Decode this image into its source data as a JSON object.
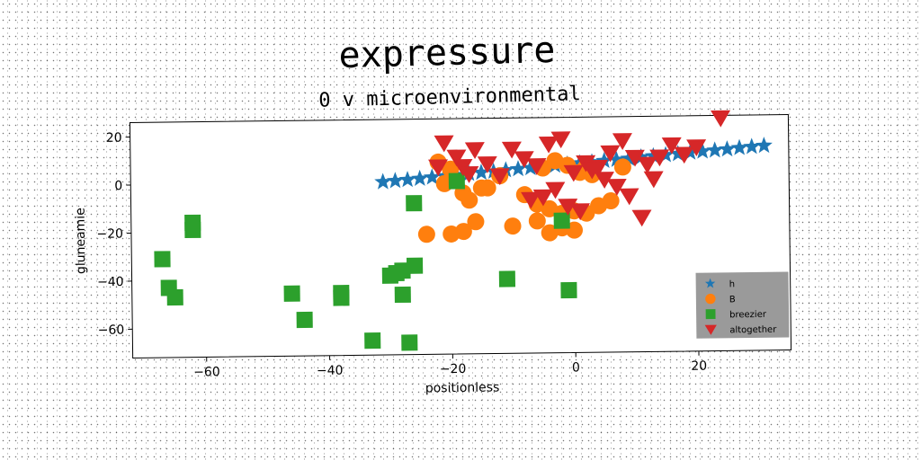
{
  "chart_data": {
    "type": "scatter",
    "title": "expressure",
    "subtitle": "0 v microenvironmental",
    "xlabel": "positionless",
    "ylabel": "gluneamie",
    "xlim": [
      -72,
      35
    ],
    "ylim": [
      -72,
      26
    ],
    "xticks": [
      -60,
      -40,
      -20,
      0,
      20
    ],
    "yticks": [
      20,
      0,
      -20,
      -40,
      -60
    ],
    "xtick_labels": [
      "−60",
      "−40",
      "−20",
      "0",
      "20"
    ],
    "ytick_labels": [
      "20",
      "0",
      "−20",
      "−40",
      "−60"
    ],
    "grid": false,
    "legend_position": "bottom-right",
    "series": [
      {
        "name": "h",
        "marker": "star",
        "color": "#1f77b4",
        "x": [
          -31,
          -29,
          -27,
          -25,
          -23,
          -21,
          -19,
          -17,
          -15,
          -13,
          -11,
          -9,
          -7,
          -5,
          -3,
          -1,
          1,
          3,
          5,
          7,
          9,
          11,
          13,
          15,
          17,
          19,
          21,
          23,
          25,
          27,
          29,
          31
        ],
        "y": [
          0,
          0.4,
          0.8,
          1.2,
          1.7,
          2.1,
          2.5,
          3,
          3.4,
          3.8,
          4.3,
          4.7,
          5.1,
          5.5,
          6,
          6.4,
          6.8,
          7.2,
          7.7,
          8.1,
          8.5,
          9,
          9.4,
          9.8,
          10.2,
          10.7,
          11.1,
          11.5,
          11.9,
          12.4,
          12.8,
          13.2
        ]
      },
      {
        "name": "B",
        "marker": "circle",
        "color": "#ff7f0e",
        "x": [
          -22,
          -20,
          -21,
          -18,
          -14,
          -12,
          -16,
          -20,
          -24,
          -18,
          -10,
          -6,
          -4,
          -2,
          0,
          2,
          4,
          6,
          8,
          -5,
          -3,
          -1,
          1,
          3,
          -8,
          -6,
          -4,
          -2,
          0,
          2,
          -15,
          -17
        ],
        "y": [
          8,
          5,
          -1,
          -5,
          -3,
          2,
          -17,
          -22,
          -22,
          -21,
          -19,
          -17,
          -22,
          -20,
          -21,
          -14,
          -11,
          -9,
          5,
          5,
          8,
          6,
          3,
          2,
          -6,
          -10,
          -12,
          -14,
          -13,
          5,
          -3,
          -8
        ]
      },
      {
        "name": "breezier",
        "marker": "square",
        "color": "#2ca02c",
        "x": [
          -67,
          -66,
          -65,
          -62,
          -62,
          -46,
          -44,
          -38,
          -38,
          -33,
          -30,
          -28,
          -27,
          -26,
          -26,
          -28,
          -11,
          -2,
          -1,
          -19,
          -29
        ],
        "y": [
          -31,
          -43,
          -47,
          -16,
          -19,
          -46,
          -57,
          -46,
          -48,
          -66,
          -39,
          -47,
          -67,
          -35,
          -9,
          -37,
          -41,
          -17,
          -46,
          0,
          -38
        ]
      },
      {
        "name": "altogether",
        "marker": "triangle",
        "color": "#d62728",
        "x": [
          -21,
          -19,
          -18,
          -16,
          -14,
          -12,
          -10,
          -8,
          -6,
          -4,
          -2,
          0,
          2,
          4,
          6,
          8,
          10,
          12,
          14,
          16,
          18,
          20,
          24,
          -5,
          -3,
          -1,
          1,
          3,
          5,
          7,
          9,
          11,
          -22,
          -17,
          -7,
          13
        ],
        "y": [
          16,
          10,
          6,
          13,
          7,
          2,
          13,
          9,
          6,
          15,
          17,
          3,
          7,
          5,
          11,
          16,
          9,
          6,
          9,
          14,
          10,
          13,
          25,
          -7,
          -4,
          -11,
          -13,
          4,
          0,
          -3,
          -7,
          -16,
          6,
          3,
          -8,
          0
        ]
      }
    ]
  }
}
